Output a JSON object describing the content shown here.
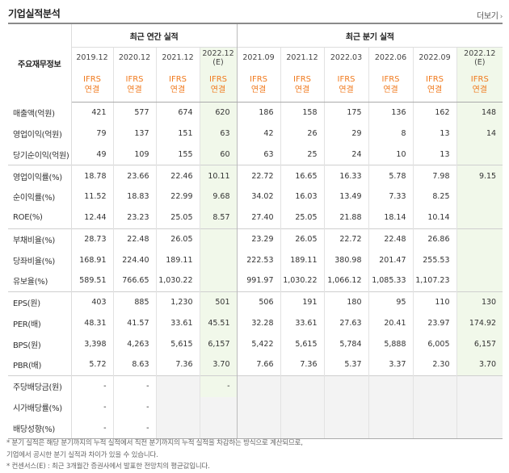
{
  "header": {
    "title": "기업실적분석",
    "more_label": "더보기"
  },
  "table": {
    "label_header": "주요재무정보",
    "group_annual": "최근 연간 실적",
    "group_quarter": "최근 분기 실적",
    "annual_dates": [
      "2019.12",
      "2020.12",
      "2021.12",
      "2022.12 (E)"
    ],
    "quarter_dates": [
      "2021.09",
      "2021.12",
      "2022.03",
      "2022.06",
      "2022.09",
      "2022.12 (E)"
    ],
    "standard": "IFRS 연결",
    "rows": [
      {
        "label": "매출액(억원)",
        "annual": [
          "421",
          "577",
          "674",
          "620"
        ],
        "quarter": [
          "186",
          "158",
          "175",
          "136",
          "162",
          "148"
        ]
      },
      {
        "label": "영업이익(억원)",
        "annual": [
          "79",
          "137",
          "151",
          "63"
        ],
        "quarter": [
          "42",
          "26",
          "29",
          "8",
          "13",
          "14"
        ]
      },
      {
        "label": "당기순이익(억원)",
        "annual": [
          "49",
          "109",
          "155",
          "60"
        ],
        "quarter": [
          "63",
          "25",
          "24",
          "10",
          "13",
          ""
        ]
      },
      {
        "label": "영업이익률(%)",
        "annual": [
          "18.78",
          "23.66",
          "22.46",
          "10.11"
        ],
        "quarter": [
          "22.72",
          "16.65",
          "16.33",
          "5.78",
          "7.98",
          "9.15"
        ]
      },
      {
        "label": "순이익률(%)",
        "annual": [
          "11.52",
          "18.83",
          "22.99",
          "9.68"
        ],
        "quarter": [
          "34.02",
          "16.03",
          "13.49",
          "7.33",
          "8.25",
          ""
        ]
      },
      {
        "label": "ROE(%)",
        "annual": [
          "12.44",
          "23.23",
          "25.05",
          "8.57"
        ],
        "quarter": [
          "27.40",
          "25.05",
          "21.88",
          "18.14",
          "10.14",
          ""
        ]
      },
      {
        "label": "부채비율(%)",
        "annual": [
          "28.73",
          "22.48",
          "26.05",
          ""
        ],
        "quarter": [
          "23.29",
          "26.05",
          "22.72",
          "22.48",
          "26.86",
          ""
        ]
      },
      {
        "label": "당좌비율(%)",
        "annual": [
          "168.91",
          "224.40",
          "189.11",
          ""
        ],
        "quarter": [
          "222.53",
          "189.11",
          "380.98",
          "201.47",
          "255.53",
          ""
        ]
      },
      {
        "label": "유보율(%)",
        "annual": [
          "589.51",
          "766.65",
          "1,030.22",
          ""
        ],
        "quarter": [
          "991.97",
          "1,030.22",
          "1,066.12",
          "1,085.33",
          "1,107.23",
          ""
        ]
      },
      {
        "label": "EPS(원)",
        "annual": [
          "403",
          "885",
          "1,230",
          "501"
        ],
        "quarter": [
          "506",
          "191",
          "180",
          "95",
          "110",
          "130"
        ]
      },
      {
        "label": "PER(배)",
        "annual": [
          "48.31",
          "41.57",
          "33.61",
          "45.51"
        ],
        "quarter": [
          "32.28",
          "33.61",
          "27.63",
          "20.41",
          "23.97",
          "174.92"
        ]
      },
      {
        "label": "BPS(원)",
        "annual": [
          "3,398",
          "4,263",
          "5,615",
          "6,157"
        ],
        "quarter": [
          "5,422",
          "5,615",
          "5,784",
          "5,888",
          "6,005",
          "6,157"
        ]
      },
      {
        "label": "PBR(배)",
        "annual": [
          "5.72",
          "8.63",
          "7.36",
          "3.70"
        ],
        "quarter": [
          "7.66",
          "7.36",
          "5.37",
          "3.37",
          "2.30",
          "3.70"
        ]
      },
      {
        "label": "주당배당금(원)",
        "annual": [
          "-",
          "-",
          "",
          "-"
        ],
        "quarter": [
          "",
          "",
          "",
          "",
          "",
          ""
        ]
      },
      {
        "label": "시가배당률(%)",
        "annual": [
          "-",
          "-",
          "",
          ""
        ],
        "quarter": [
          "",
          "",
          "",
          "",
          "",
          ""
        ]
      },
      {
        "label": "배당성향(%)",
        "annual": [
          "-",
          "-",
          "",
          ""
        ],
        "quarter": [
          "",
          "",
          "",
          "",
          "",
          ""
        ]
      }
    ]
  },
  "notes": [
    "* 분기 실적은 해당 분기까지의 누적 실적에서 직전 분기까지의 누적 실적을 차감하는 방식으로 계산되므로,",
    "  기업에서 공시한 분기 실적과 차이가 있을 수 있습니다.",
    "* 컨센서스(E) : 최근 3개월간 증권사에서 발표한 전망치의 평균값입니다."
  ]
}
